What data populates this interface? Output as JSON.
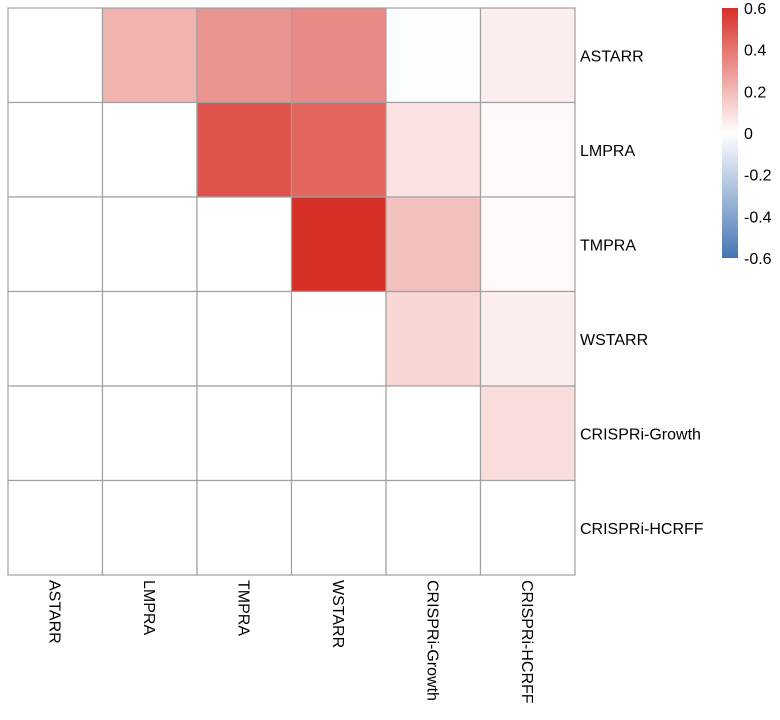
{
  "chart_data": {
    "type": "heatmap",
    "rows": [
      "ASTARR",
      "LMPRA",
      "TMPRA",
      "WSTARR",
      "CRISPRi-Growth",
      "CRISPRi-HCRFF"
    ],
    "columns": [
      "ASTARR",
      "LMPRA",
      "TMPRA",
      "WSTARR",
      "CRISPRi-Growth",
      "CRISPRi-HCRFF"
    ],
    "values": [
      [
        null,
        0.22,
        0.31,
        0.34,
        -0.01,
        0.05
      ],
      [
        null,
        null,
        0.5,
        0.45,
        0.08,
        0.02
      ],
      [
        null,
        null,
        null,
        0.6,
        0.18,
        0.02
      ],
      [
        null,
        null,
        null,
        null,
        0.12,
        0.05
      ],
      [
        null,
        null,
        null,
        null,
        null,
        0.1
      ],
      [
        null,
        null,
        null,
        null,
        null,
        null
      ]
    ],
    "colorbar": {
      "range": [
        -0.6,
        0.6
      ],
      "ticks": [
        0.6,
        0.4,
        0.2,
        0,
        -0.2,
        -0.4,
        -0.6
      ],
      "tick_labels": [
        "0.6",
        "0.4",
        "0.2",
        "0",
        "-0.2",
        "-0.4",
        "-0.6"
      ],
      "low_color": "#4575b4",
      "mid_color": "#ffffff",
      "high_color": "#d73027"
    },
    "grid_color": "#a0a0a0",
    "row_label_position": "right",
    "column_label_position": "bottom-rotated",
    "legend_position": "top-right"
  }
}
